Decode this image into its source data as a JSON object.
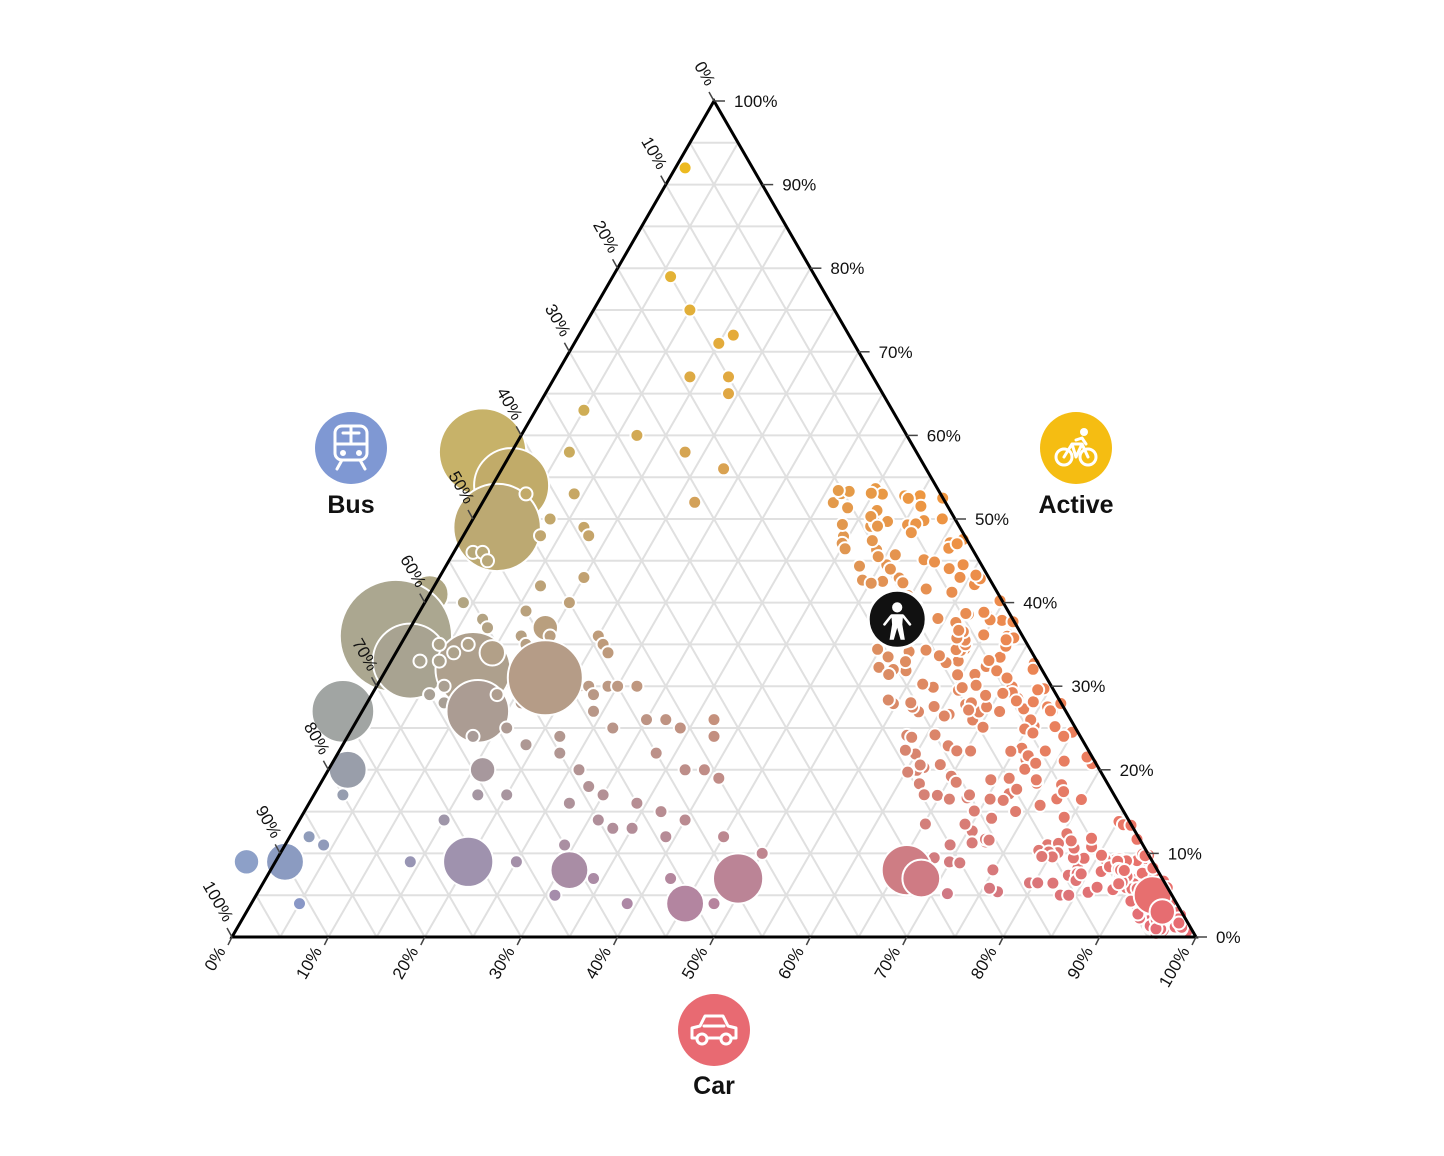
{
  "chart_data": {
    "type": "scatter",
    "subtype": "ternary-bubble",
    "title": "",
    "components": [
      "Car",
      "Active",
      "Bus"
    ],
    "axes": {
      "car": {
        "label": "Car",
        "ticks": [
          "0%",
          "10%",
          "20%",
          "30%",
          "40%",
          "50%",
          "60%",
          "70%",
          "80%",
          "90%",
          "100%"
        ]
      },
      "active": {
        "label": "Active",
        "ticks": [
          "0%",
          "10%",
          "20%",
          "30%",
          "40%",
          "50%",
          "60%",
          "70%",
          "80%",
          "90%",
          "100%"
        ]
      },
      "bus": {
        "label": "Bus",
        "ticks": [
          "0%",
          "10%",
          "20%",
          "30%",
          "40%",
          "50%",
          "60%",
          "70%",
          "80%",
          "90%",
          "100%"
        ]
      }
    },
    "grid": true,
    "colors": {
      "car": "#e86a72",
      "active": "#f5bd12",
      "bus": "#7f98d3",
      "frame": "#000000",
      "grid": "#e0e0e0"
    },
    "icons": {
      "bus": "train-icon",
      "active": "bicycle-icon",
      "car": "car-icon",
      "highlight": "person-icon"
    },
    "points_note": "each point: [car, active, bus, relative size]",
    "highlight_point": {
      "car": 0.5,
      "active": 0.38,
      "bus": 0.12,
      "size": 3
    },
    "points": [
      [
        0.01,
        0.92,
        0.07,
        1
      ],
      [
        0.06,
        0.79,
        0.15,
        1
      ],
      [
        0.1,
        0.75,
        0.15,
        1
      ],
      [
        0.16,
        0.72,
        0.12,
        1
      ],
      [
        0.15,
        0.71,
        0.14,
        1
      ],
      [
        0.18,
        0.67,
        0.15,
        1
      ],
      [
        0.14,
        0.67,
        0.19,
        1
      ],
      [
        0.19,
        0.65,
        0.16,
        1
      ],
      [
        0.05,
        0.63,
        0.32,
        1
      ],
      [
        0.06,
        0.58,
        0.36,
        1
      ],
      [
        0.12,
        0.6,
        0.28,
        1
      ],
      [
        0.09,
        0.53,
        0.38,
        1
      ],
      [
        0.18,
        0.58,
        0.24,
        1
      ],
      [
        0.22,
        0.52,
        0.26,
        1
      ],
      [
        0.23,
        0.56,
        0.21,
        1
      ],
      [
        -0.03,
        0.58,
        0.45,
        7
      ],
      [
        0.02,
        0.54,
        0.44,
        6
      ],
      [
        0.03,
        0.49,
        0.48,
        7
      ],
      [
        0.04,
        0.53,
        0.43,
        1
      ],
      [
        0.02,
        0.46,
        0.52,
        1
      ],
      [
        0.03,
        0.46,
        0.51,
        1
      ],
      [
        0.04,
        0.45,
        0.51,
        1
      ],
      [
        0.08,
        0.48,
        0.44,
        1
      ],
      [
        0.08,
        0.5,
        0.42,
        1
      ],
      [
        0.12,
        0.49,
        0.39,
        1
      ],
      [
        0.13,
        0.48,
        0.39,
        1
      ],
      [
        0.04,
        0.4,
        0.56,
        1
      ],
      [
        0.07,
        0.38,
        0.55,
        1
      ],
      [
        0.08,
        0.37,
        0.55,
        1
      ],
      [
        0.11,
        0.39,
        0.5,
        1
      ],
      [
        0.11,
        0.42,
        0.47,
        1
      ],
      [
        0.15,
        0.4,
        0.45,
        1
      ],
      [
        0.15,
        0.43,
        0.42,
        1
      ],
      [
        -0.05,
        0.39,
        0.66,
        1
      ],
      [
        0.0,
        0.41,
        0.59,
        3
      ],
      [
        -0.01,
        0.36,
        0.65,
        9
      ],
      [
        0.02,
        0.33,
        0.65,
        6
      ],
      [
        0.09,
        0.32,
        0.59,
        6
      ],
      [
        0.03,
        0.33,
        0.64,
        1
      ],
      [
        0.04,
        0.35,
        0.61,
        1
      ],
      [
        0.05,
        0.33,
        0.62,
        1
      ],
      [
        0.06,
        0.34,
        0.6,
        1
      ],
      [
        0.07,
        0.35,
        0.58,
        1
      ],
      [
        0.1,
        0.34,
        0.56,
        2
      ],
      [
        0.12,
        0.36,
        0.52,
        1
      ],
      [
        0.13,
        0.35,
        0.52,
        1
      ],
      [
        0.14,
        0.37,
        0.49,
        2
      ],
      [
        0.15,
        0.36,
        0.49,
        1
      ],
      [
        0.16,
        0.34,
        0.5,
        1
      ],
      [
        0.2,
        0.36,
        0.44,
        1
      ],
      [
        0.21,
        0.35,
        0.44,
        1
      ],
      [
        0.22,
        0.34,
        0.44,
        1
      ],
      [
        0.19,
        0.31,
        0.5,
        1
      ],
      [
        0.21,
        0.3,
        0.49,
        1
      ],
      [
        0.22,
        0.3,
        0.48,
        1
      ],
      [
        0.23,
        0.29,
        0.48,
        1
      ],
      [
        0.24,
        0.3,
        0.46,
        1
      ],
      [
        0.25,
        0.3,
        0.45,
        1
      ],
      [
        0.27,
        0.3,
        0.43,
        1
      ],
      [
        0.11,
        0.29,
        0.6,
        1
      ],
      [
        0.1,
        0.29,
        0.61,
        1
      ],
      [
        0.08,
        0.28,
        0.64,
        1
      ],
      [
        0.16,
        0.28,
        0.56,
        1
      ],
      [
        0.17,
        0.31,
        0.52,
        6
      ],
      [
        0.12,
        0.27,
        0.61,
        5
      ],
      [
        0.13,
        0.29,
        0.58,
        1
      ],
      [
        0.06,
        0.29,
        0.65,
        1
      ],
      [
        0.07,
        0.3,
        0.63,
        1
      ],
      [
        0.24,
        0.27,
        0.49,
        1
      ],
      [
        0.27,
        0.25,
        0.48,
        1
      ],
      [
        0.3,
        0.26,
        0.44,
        1
      ],
      [
        0.34,
        0.25,
        0.41,
        1
      ],
      [
        0.32,
        0.26,
        0.42,
        1
      ],
      [
        0.37,
        0.26,
        0.37,
        1
      ],
      [
        0.38,
        0.24,
        0.38,
        1
      ],
      [
        0.22,
        0.24,
        0.54,
        1
      ],
      [
        0.19,
        0.23,
        0.58,
        1
      ],
      [
        0.16,
        0.25,
        0.59,
        1
      ],
      [
        0.13,
        0.24,
        0.63,
        1
      ],
      [
        0.16,
        0.2,
        0.64,
        2
      ],
      [
        0.17,
        0.17,
        0.66,
        1
      ],
      [
        -0.02,
        0.27,
        0.75,
        5
      ],
      [
        0.02,
        0.2,
        0.78,
        3
      ],
      [
        0.03,
        0.17,
        0.8,
        1
      ],
      [
        0.15,
        0.14,
        0.71,
        1
      ],
      [
        0.2,
        0.17,
        0.63,
        1
      ],
      [
        0.23,
        0.22,
        0.55,
        1
      ],
      [
        0.26,
        0.2,
        0.54,
        1
      ],
      [
        0.28,
        0.18,
        0.54,
        1
      ],
      [
        0.27,
        0.16,
        0.57,
        1
      ],
      [
        0.3,
        0.17,
        0.53,
        1
      ],
      [
        0.31,
        0.14,
        0.55,
        1
      ],
      [
        0.33,
        0.13,
        0.54,
        1
      ],
      [
        0.34,
        0.16,
        0.5,
        1
      ],
      [
        0.35,
        0.13,
        0.52,
        1
      ],
      [
        0.37,
        0.2,
        0.43,
        1
      ],
      [
        0.39,
        0.2,
        0.41,
        1
      ],
      [
        0.41,
        0.19,
        0.4,
        1
      ],
      [
        0.33,
        0.22,
        0.45,
        1
      ],
      [
        0.37,
        0.15,
        0.48,
        1
      ],
      [
        0.04,
        0.11,
        0.85,
        1
      ],
      [
        0.02,
        0.12,
        0.86,
        1
      ],
      [
        0.01,
        0.09,
        0.9,
        3
      ],
      [
        -0.03,
        0.09,
        0.94,
        2
      ],
      [
        0.05,
        0.04,
        0.91,
        1
      ],
      [
        0.14,
        0.09,
        0.77,
        1
      ],
      [
        0.2,
        0.09,
        0.71,
        4
      ],
      [
        0.25,
        0.09,
        0.66,
        1
      ],
      [
        0.29,
        0.11,
        0.6,
        1
      ],
      [
        0.31,
        0.05,
        0.64,
        1
      ],
      [
        0.34,
        0.07,
        0.59,
        1
      ],
      [
        0.31,
        0.08,
        0.61,
        3
      ],
      [
        0.39,
        0.04,
        0.57,
        1
      ],
      [
        0.42,
        0.07,
        0.51,
        1
      ],
      [
        0.45,
        0.04,
        0.51,
        3
      ],
      [
        0.49,
        0.07,
        0.44,
        4
      ],
      [
        0.48,
        0.04,
        0.48,
        1
      ],
      [
        0.45,
        0.12,
        0.43,
        1
      ],
      [
        0.5,
        0.1,
        0.4,
        1
      ],
      [
        0.4,
        0.14,
        0.46,
        1
      ],
      [
        0.39,
        0.12,
        0.49,
        1
      ]
    ]
  }
}
